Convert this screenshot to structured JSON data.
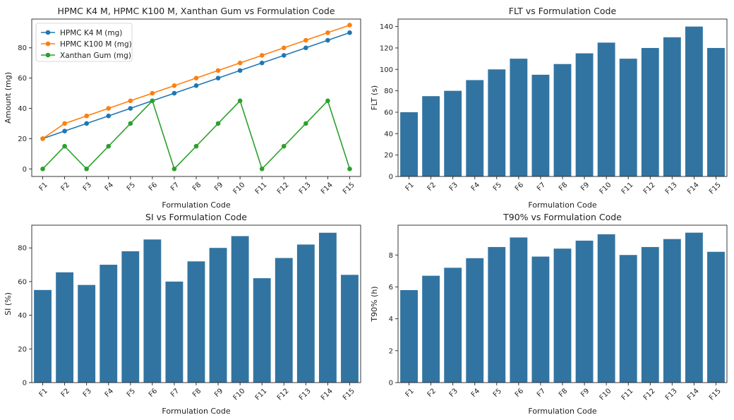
{
  "colors": {
    "bar": "#3274a1",
    "series": [
      "#1f77b4",
      "#ff7f0e",
      "#2ca02c"
    ],
    "axis": "#222222"
  },
  "chart_data": [
    {
      "id": "amount",
      "type": "line",
      "title": "HPMC K4 M, HPMC K100 M, Xanthan Gum vs Formulation Code",
      "xlabel": "Formulation Code",
      "ylabel": "Amount (mg)",
      "categories": [
        "F1",
        "F2",
        "F3",
        "F4",
        "F5",
        "F6",
        "F7",
        "F8",
        "F9",
        "F10",
        "F11",
        "F12",
        "F13",
        "F14",
        "F15"
      ],
      "ylim": [
        -5,
        99
      ],
      "yticks": [
        0,
        20,
        40,
        60,
        80
      ],
      "legend": "top-left",
      "grid": false,
      "series": [
        {
          "name": "HPMC K4 M (mg)",
          "values": [
            20,
            25,
            30,
            35,
            40,
            45,
            50,
            55,
            60,
            65,
            70,
            75,
            80,
            85,
            90
          ]
        },
        {
          "name": "HPMC K100 M (mg)",
          "values": [
            20,
            30,
            35,
            40,
            45,
            50,
            55,
            60,
            65,
            70,
            75,
            80,
            85,
            90,
            95
          ]
        },
        {
          "name": "Xanthan Gum (mg)",
          "values": [
            0,
            15,
            0,
            15,
            30,
            45,
            0,
            15,
            30,
            45,
            0,
            15,
            30,
            45,
            0
          ]
        }
      ]
    },
    {
      "id": "flt",
      "type": "bar",
      "title": "FLT vs Formulation Code",
      "xlabel": "Formulation Code",
      "ylabel": "FLT (s)",
      "categories": [
        "F1",
        "F2",
        "F3",
        "F4",
        "F5",
        "F6",
        "F7",
        "F8",
        "F9",
        "F10",
        "F11",
        "F12",
        "F13",
        "F14",
        "F15"
      ],
      "values": [
        60,
        75,
        80,
        90,
        100,
        110,
        95,
        105,
        115,
        125,
        110,
        120,
        130,
        140,
        120
      ],
      "ylim": [
        0,
        147
      ],
      "yticks": [
        0,
        20,
        40,
        60,
        80,
        100,
        120,
        140
      ],
      "grid": false
    },
    {
      "id": "si",
      "type": "bar",
      "title": "SI vs Formulation Code",
      "xlabel": "Formulation Code",
      "ylabel": "SI (%)",
      "categories": [
        "F1",
        "F2",
        "F3",
        "F4",
        "F5",
        "F6",
        "F7",
        "F8",
        "F9",
        "F10",
        "F11",
        "F12",
        "F13",
        "F14",
        "F15"
      ],
      "values": [
        55,
        65.5,
        58,
        70,
        78,
        85,
        60,
        72,
        80,
        87,
        62,
        74,
        82,
        89,
        64
      ],
      "ylim": [
        0,
        93.5
      ],
      "yticks": [
        0,
        20,
        40,
        60,
        80
      ],
      "grid": false
    },
    {
      "id": "t90",
      "type": "bar",
      "title": "T90% vs Formulation Code",
      "xlabel": "Formulation Code",
      "ylabel": "T90% (h)",
      "categories": [
        "F1",
        "F2",
        "F3",
        "F4",
        "F5",
        "F6",
        "F7",
        "F8",
        "F9",
        "F10",
        "F11",
        "F12",
        "F13",
        "F14",
        "F15"
      ],
      "values": [
        5.8,
        6.7,
        7.2,
        7.8,
        8.5,
        9.1,
        7.9,
        8.4,
        8.9,
        9.3,
        8.0,
        8.5,
        9.0,
        9.4,
        8.2
      ],
      "ylim": [
        0,
        9.87
      ],
      "yticks": [
        0,
        2,
        4,
        6,
        8
      ],
      "grid": false
    }
  ]
}
